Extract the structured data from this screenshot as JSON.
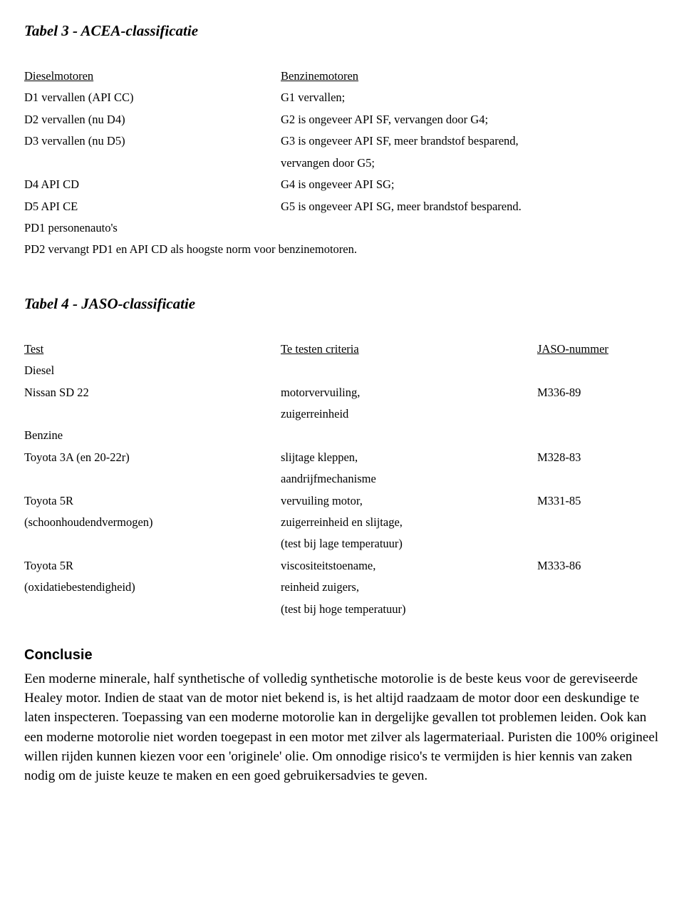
{
  "table3": {
    "title": "Tabel 3 - ACEA-classificatie",
    "headers": {
      "left": "Dieselmotoren",
      "right": "Benzinemotoren"
    },
    "rows": [
      {
        "left": "D1 vervallen (API CC)",
        "right": "G1 vervallen;"
      },
      {
        "left": "D2 vervallen (nu D4)",
        "right": "G2 is ongeveer API SF, vervangen door G4;"
      },
      {
        "left": "D3 vervallen (nu D5)",
        "right": "G3 is ongeveer API SF, meer brandstof besparend,"
      },
      {
        "left": "",
        "right": "vervangen door G5;"
      },
      {
        "left": "D4 API CD",
        "right": "G4 is ongeveer API SG;"
      },
      {
        "left": "D5 API CE",
        "right": "G5 is ongeveer API SG, meer brandstof besparend."
      },
      {
        "left": "PD1 personenauto's",
        "right": ""
      }
    ],
    "footnote": "PD2 vervangt PD1 en API CD als hoogste norm voor benzinemotoren."
  },
  "table4": {
    "title": "Tabel 4 - JASO-classificatie",
    "headers": {
      "c1": "Test",
      "c2": "Te testen criteria",
      "c3": "JASO-nummer"
    },
    "rows": [
      {
        "c1": "Diesel",
        "c2": "",
        "c3": ""
      },
      {
        "c1": "Nissan SD 22",
        "c2": "motorvervuiling,",
        "c3": "M336-89"
      },
      {
        "c1": "",
        "c2": "zuigerreinheid",
        "c3": ""
      },
      {
        "c1": "Benzine",
        "c2": "",
        "c3": ""
      },
      {
        "c1": "Toyota 3A (en 20-22r)",
        "c2": "slijtage kleppen,",
        "c3": "M328-83"
      },
      {
        "c1": "",
        "c2": "aandrijfmechanisme",
        "c3": ""
      },
      {
        "c1": "Toyota 5R",
        "c2": "vervuiling motor,",
        "c3": "M331-85"
      },
      {
        "c1": "(schoonhoudendvermogen)",
        "c2": "zuigerreinheid en slijtage,",
        "c3": ""
      },
      {
        "c1": "",
        "c2": "(test bij lage temperatuur)",
        "c3": ""
      },
      {
        "c1": "Toyota 5R",
        "c2": "viscositeitstoename,",
        "c3": "M333-86"
      },
      {
        "c1": "(oxidatiebestendigheid)",
        "c2": "reinheid zuigers,",
        "c3": ""
      },
      {
        "c1": "",
        "c2": "(test bij hoge temperatuur)",
        "c3": ""
      }
    ]
  },
  "conclusion": {
    "title": "Conclusie",
    "body": "Een moderne minerale, half synthetische of volledig synthetische motorolie is de beste keus voor de gereviseerde Healey motor. Indien de staat van de motor niet bekend is, is het altijd raadzaam de motor door een deskundige te laten inspecteren. Toepassing van een moderne motorolie kan in dergelijke gevallen tot problemen leiden. Ook kan een moderne motorolie niet worden toegepast in een motor met zilver als lagermateriaal. Puristen die 100% origineel willen rijden kunnen kiezen voor een 'originele' olie. Om onnodige risico's te vermijden is hier kennis van zaken nodig om de juiste keuze te maken en een goed gebruikersadvies te geven."
  },
  "styling": {
    "background_color": "#ffffff",
    "text_color": "#000000",
    "title_fontsize_pt": 16,
    "body_fontsize_pt": 12,
    "conclusion_title_fontsize_pt": 15,
    "conclusion_body_fontsize_pt": 14
  }
}
